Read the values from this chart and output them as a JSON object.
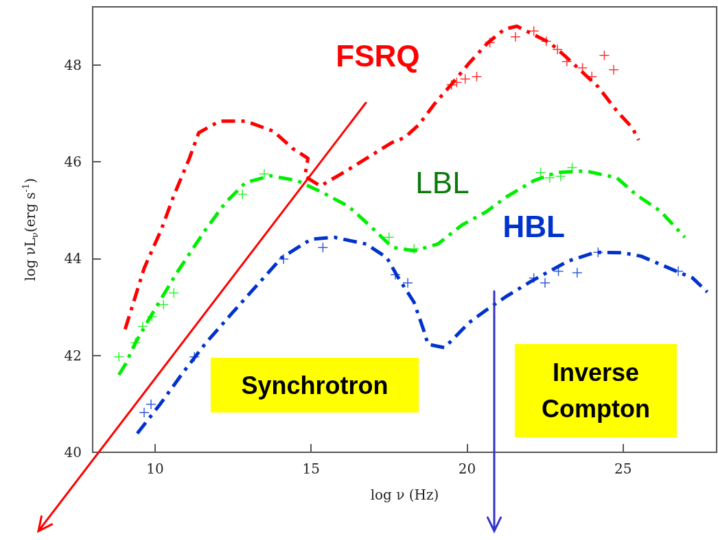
{
  "chart_data": {
    "type": "line",
    "xlabel": "log ν (Hz)",
    "ylabel": "log νL$_{ν}$(erg s$^{-1}$)",
    "xlim": [
      8,
      28
    ],
    "xticks": [
      10,
      15,
      20,
      25
    ],
    "ylim": [
      40,
      49.2
    ],
    "yticks": [
      40,
      42,
      44,
      46,
      48
    ],
    "grid": false,
    "legend": false,
    "line_style": "dashed",
    "annotations": [
      "Synchrotron",
      "Inverse Compton"
    ],
    "series": [
      {
        "name": "FSRQ",
        "color": "#ff0000",
        "x": [
          9.04,
          9.65,
          10.2,
          10.6,
          11.1,
          11.4,
          12.07,
          12.9,
          13.8,
          14.4,
          14.9,
          14.8,
          15.3,
          16.1,
          16.85,
          17.6,
          18.0,
          18.46,
          18.95,
          19.5,
          20.07,
          20.67,
          21.2,
          21.6,
          22.65,
          23.15,
          24.2,
          24.8,
          25.3,
          25.5
        ],
        "values": [
          42.54,
          43.8,
          44.6,
          45.3,
          46.07,
          46.6,
          46.84,
          46.84,
          46.63,
          46.28,
          46.07,
          45.7,
          45.5,
          45.8,
          46.1,
          46.4,
          46.5,
          46.77,
          47.19,
          47.6,
          48.04,
          48.46,
          48.74,
          48.8,
          48.46,
          48.18,
          47.55,
          47.05,
          46.7,
          46.45
        ]
      },
      {
        "type": "scatter",
        "marker": "cross",
        "color": "#ff0000",
        "x": [
          19.5,
          19.67,
          19.94,
          20.31,
          20.73,
          21.55,
          22.14,
          22.54,
          22.9,
          23.2,
          23.7,
          24.0,
          24.4,
          24.7
        ],
        "values": [
          47.59,
          47.64,
          47.71,
          47.76,
          48.46,
          48.58,
          48.7,
          48.49,
          48.32,
          48.07,
          47.94,
          47.76,
          48.2,
          47.9
        ]
      },
      {
        "name": "LBL",
        "color": "#00ee00",
        "x": [
          8.84,
          9.06,
          9.37,
          9.87,
          10.69,
          11.6,
          12.25,
          12.9,
          13.7,
          14.56,
          15.38,
          16.2,
          16.85,
          17.5,
          17.65,
          18.3,
          19.06,
          19.85,
          20.6,
          21.3,
          22.14,
          22.87,
          23.8,
          24.8,
          25.4,
          26.2,
          26.98
        ],
        "values": [
          41.6,
          41.83,
          42.26,
          42.82,
          43.7,
          44.58,
          45.15,
          45.57,
          45.71,
          45.61,
          45.36,
          45.08,
          44.7,
          44.3,
          44.23,
          44.16,
          44.3,
          44.7,
          44.96,
          45.29,
          45.61,
          45.78,
          45.81,
          45.67,
          45.33,
          44.98,
          44.44
        ]
      },
      {
        "type": "scatter",
        "marker": "cross",
        "color": "#00ee00",
        "x": [
          8.84,
          9.37,
          9.6,
          9.9,
          10.27,
          10.6,
          12.8,
          13.5,
          17.5,
          18.3,
          22.36,
          22.65,
          23.0,
          23.37
        ],
        "values": [
          41.97,
          42.26,
          42.6,
          42.8,
          43.05,
          43.29,
          45.33,
          45.75,
          44.44,
          44.2,
          45.78,
          45.67,
          45.7,
          45.88
        ]
      },
      {
        "name": "HBL",
        "color": "#0033cc",
        "x": [
          9.43,
          10.16,
          10.9,
          11.63,
          12.45,
          13.24,
          14.06,
          15.0,
          15.75,
          16.77,
          17.43,
          17.8,
          18.3,
          18.6,
          18.75,
          19.28,
          20.07,
          20.6,
          21.26,
          22.05,
          23.24,
          24.12,
          25.0,
          25.58,
          26.6,
          27.23,
          27.7
        ],
        "values": [
          40.39,
          40.99,
          41.65,
          42.26,
          42.86,
          43.43,
          44.02,
          44.4,
          44.44,
          44.3,
          44.02,
          43.6,
          43.1,
          42.54,
          42.23,
          42.16,
          42.68,
          42.93,
          43.22,
          43.53,
          43.95,
          44.13,
          44.12,
          44.05,
          43.77,
          43.6,
          43.31
        ]
      },
      {
        "type": "scatter",
        "marker": "cross",
        "color": "#0033cc",
        "x": [
          9.65,
          9.87,
          11.26,
          14.12,
          15.38,
          17.7,
          18.1,
          22.14,
          22.5,
          22.93,
          23.53,
          24.2,
          26.77
        ],
        "values": [
          40.82,
          40.99,
          41.97,
          43.99,
          44.23,
          43.67,
          43.5,
          43.6,
          43.5,
          43.74,
          43.71,
          44.13,
          43.74
        ]
      }
    ]
  }
}
